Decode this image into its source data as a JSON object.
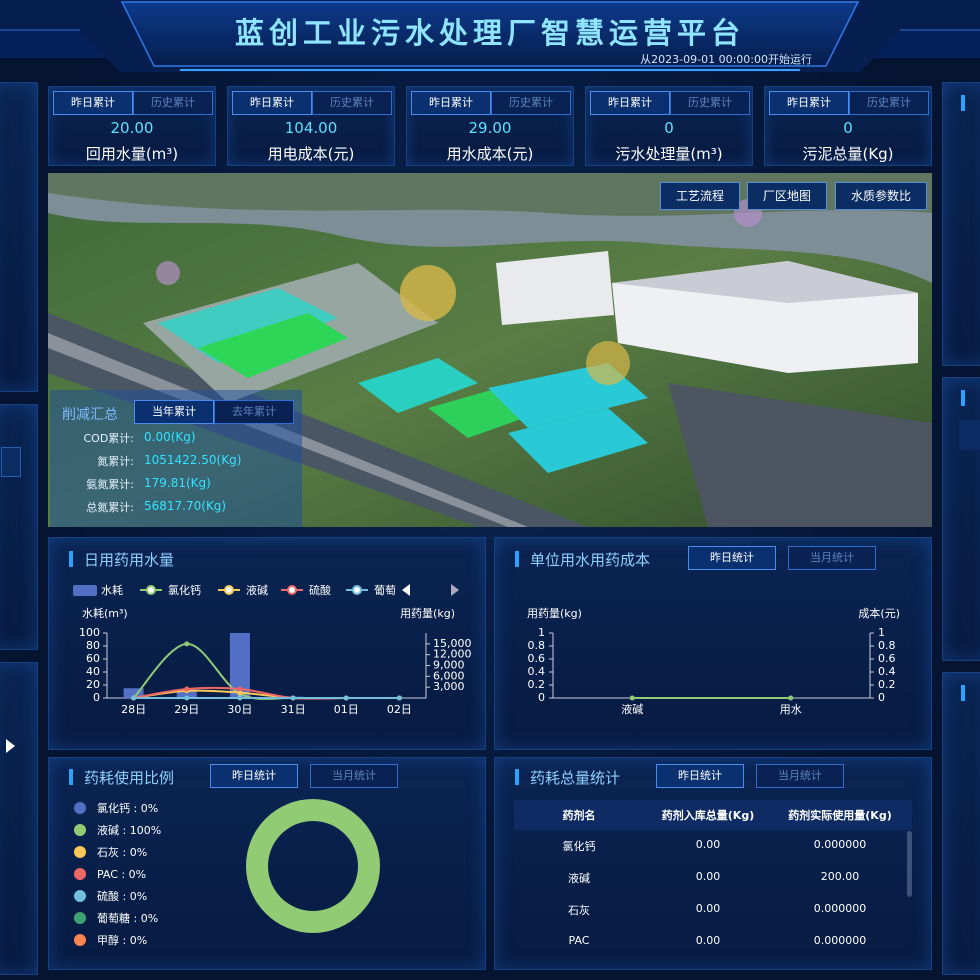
{
  "header": {
    "title": "蓝创工业污水处理厂智慧运营平台",
    "subtitle": "从2023-09-01 00:00:00开始运行"
  },
  "kpis": [
    {
      "tabs": [
        "昨日累计",
        "历史累计"
      ],
      "value": "20.00",
      "label": "回用水量(m³)"
    },
    {
      "tabs": [
        "昨日累计",
        "历史累计"
      ],
      "value": "104.00",
      "label": "用电成本(元)"
    },
    {
      "tabs": [
        "昨日累计",
        "历史累计"
      ],
      "value": "29.00",
      "label": "用水成本(元)"
    },
    {
      "tabs": [
        "昨日累计",
        "历史累计"
      ],
      "value": "0",
      "label": "污水处理量(m³)"
    },
    {
      "tabs": [
        "昨日累计",
        "历史累计"
      ],
      "value": "0",
      "label": "污泥总量(Kg)"
    }
  ],
  "map": {
    "buttons": [
      "工艺流程",
      "厂区地图",
      "水质参数比"
    ]
  },
  "reduction": {
    "title": "削减汇总",
    "tabs": [
      "当年累计",
      "去年累计"
    ],
    "rows": [
      [
        "COD累计:",
        "0.00(Kg)"
      ],
      [
        "氮累计:",
        "1051422.50(Kg)"
      ],
      [
        "氨氮累计:",
        "179.81(Kg)"
      ],
      [
        "总氮累计:",
        "56817.70(Kg)"
      ]
    ]
  },
  "chart_data": [
    {
      "type": "combo",
      "title": "日用药用水量",
      "y_label": "水耗(m³)",
      "y2_label": "用药量(kg)",
      "categories": [
        "28日",
        "29日",
        "30日",
        "31日",
        "01日",
        "02日"
      ],
      "ylim": [
        0,
        100
      ],
      "yticks": [
        0,
        20,
        40,
        60,
        80,
        100
      ],
      "y2lim": [
        0,
        18000
      ],
      "y2ticks": [
        {
          "value": 3000,
          "label": "3,000"
        },
        {
          "value": 6000,
          "label": "6,000"
        },
        {
          "value": 9000,
          "label": "9,000"
        },
        {
          "value": 12000,
          "label": "12,000"
        },
        {
          "value": 15000,
          "label": "15,000"
        }
      ],
      "series": [
        {
          "name": "水耗",
          "type": "bar",
          "color": "#5470c6",
          "values": [
            15,
            10,
            100,
            2,
            0,
            0
          ]
        },
        {
          "name": "氯化钙",
          "type": "line",
          "axis": "y2",
          "color": "#91cc75",
          "values": [
            0,
            15000,
            1200,
            0,
            0,
            0
          ]
        },
        {
          "name": "液碱",
          "type": "line",
          "axis": "y2",
          "color": "#fac858",
          "values": [
            0,
            2000,
            1500,
            0,
            0,
            0
          ]
        },
        {
          "name": "硫酸",
          "type": "line",
          "axis": "y2",
          "color": "#ee6666",
          "values": [
            0,
            2500,
            2500,
            0,
            0,
            0
          ]
        },
        {
          "name": "葡萄糖",
          "type": "line",
          "axis": "y2",
          "color": "#73c0de",
          "values": [
            0,
            0,
            0,
            0,
            0,
            0
          ]
        }
      ]
    },
    {
      "type": "line",
      "title": "单位用水用药成本",
      "tabs": [
        "昨日统计",
        "当月统计"
      ],
      "y_label": "用药量(kg)",
      "y2_label": "成本(元)",
      "categories": [
        "液碱",
        "用水"
      ],
      "ylim": [
        0,
        1
      ],
      "yticks": [
        0,
        0.2,
        0.4,
        0.6,
        0.8,
        1
      ],
      "y2lim": [
        0,
        1
      ],
      "y2ticks": [
        0,
        0.2,
        0.4,
        0.6,
        0.8,
        1
      ],
      "series": [
        {
          "color": "#91cc75",
          "values": [
            0,
            0
          ]
        }
      ]
    },
    {
      "type": "pie",
      "title": "药耗使用比例",
      "tabs": [
        "昨日统计",
        "当月统计"
      ],
      "legend": [
        "氯化钙 : 0%",
        "液碱 : 100%",
        "石灰 : 0%",
        "PAC : 0%",
        "硫酸 : 0%",
        "葡萄糖 : 0%",
        "甲醇 : 0%"
      ],
      "values": [
        0,
        100,
        0,
        0,
        0,
        0,
        0
      ],
      "colors": [
        "#5470c6",
        "#91cc75",
        "#fac858",
        "#ee6666",
        "#73c0de",
        "#3ba272",
        "#fc8452"
      ]
    }
  ],
  "drug_table": {
    "title": "药耗总量统计",
    "tabs": [
      "昨日统计",
      "当月统计"
    ],
    "columns": [
      "药剂名",
      "药剂入库总量(Kg)",
      "药剂实际使用量(Kg)"
    ],
    "rows": [
      [
        "氯化钙",
        "0.00",
        "0.000000"
      ],
      [
        "液碱",
        "0.00",
        "200.00"
      ],
      [
        "石灰",
        "0.00",
        "0.000000"
      ],
      [
        "PAC",
        "0.00",
        "0.000000"
      ]
    ]
  }
}
